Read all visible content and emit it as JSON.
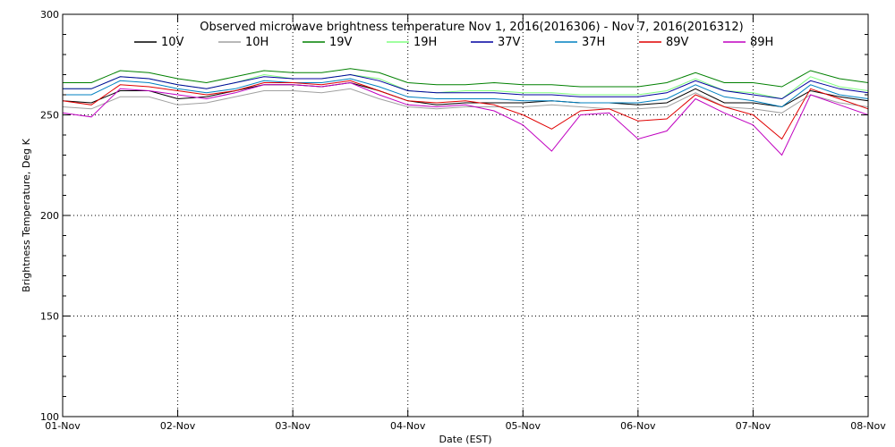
{
  "chart_data": {
    "type": "line",
    "title": "Observed microwave brightness temperature Nov  1, 2016(2016306) - Nov  7, 2016(2016312)",
    "xlabel": "Date (EST)",
    "ylabel": "Brightness Temperature, Deg K",
    "xlim": [
      "01-Nov",
      "08-Nov"
    ],
    "ylim": [
      100,
      300
    ],
    "x_ticks": [
      "01-Nov",
      "02-Nov",
      "03-Nov",
      "04-Nov",
      "05-Nov",
      "06-Nov",
      "07-Nov",
      "08-Nov"
    ],
    "y_ticks": [
      100,
      150,
      200,
      250,
      300
    ],
    "grid": true,
    "legend_position": "top",
    "x": [
      "01-Nov 00:00",
      "01-Nov 06:00",
      "01-Nov 12:00",
      "01-Nov 18:00",
      "02-Nov 00:00",
      "02-Nov 06:00",
      "02-Nov 12:00",
      "02-Nov 18:00",
      "03-Nov 00:00",
      "03-Nov 06:00",
      "03-Nov 12:00",
      "03-Nov 18:00",
      "04-Nov 00:00",
      "04-Nov 06:00",
      "04-Nov 12:00",
      "04-Nov 18:00",
      "05-Nov 00:00",
      "05-Nov 06:00",
      "05-Nov 12:00",
      "05-Nov 18:00",
      "06-Nov 00:00",
      "06-Nov 06:00",
      "06-Nov 12:00",
      "06-Nov 18:00",
      "07-Nov 00:00",
      "07-Nov 06:00",
      "07-Nov 12:00",
      "07-Nov 18:00",
      "08-Nov 00:00"
    ],
    "series": [
      {
        "name": "10V",
        "color": "#000000",
        "values": [
          257,
          256,
          262,
          262,
          258,
          259,
          262,
          265,
          265,
          264,
          266,
          262,
          257,
          255,
          256,
          256,
          256,
          257,
          256,
          256,
          255,
          256,
          263,
          256,
          256,
          254,
          262,
          259,
          257
        ]
      },
      {
        "name": "10H",
        "color": "#a0a0a0",
        "values": [
          254,
          253,
          259,
          259,
          255,
          256,
          259,
          262,
          262,
          261,
          263,
          258,
          254,
          253,
          254,
          254,
          254,
          255,
          254,
          253,
          253,
          254,
          261,
          254,
          253,
          251,
          260,
          256,
          254
        ]
      },
      {
        "name": "19V",
        "color": "#008000",
        "values": [
          266,
          266,
          272,
          271,
          268,
          266,
          269,
          272,
          271,
          271,
          273,
          271,
          266,
          265,
          265,
          266,
          265,
          265,
          264,
          264,
          264,
          266,
          271,
          266,
          266,
          264,
          272,
          268,
          266
        ]
      },
      {
        "name": "19H",
        "color": "#80ff80",
        "values": [
          263,
          263,
          269,
          268,
          265,
          263,
          266,
          270,
          268,
          268,
          270,
          268,
          262,
          261,
          262,
          262,
          261,
          261,
          260,
          260,
          260,
          262,
          268,
          262,
          261,
          258,
          269,
          264,
          262
        ]
      },
      {
        "name": "37V",
        "color": "#0000a0",
        "values": [
          263,
          263,
          269,
          268,
          265,
          263,
          266,
          269,
          268,
          268,
          270,
          267,
          262,
          261,
          261,
          261,
          260,
          260,
          259,
          259,
          259,
          261,
          267,
          262,
          260,
          258,
          267,
          263,
          261
        ]
      },
      {
        "name": "37H",
        "color": "#0080c0",
        "values": [
          260,
          260,
          267,
          266,
          263,
          261,
          263,
          267,
          266,
          266,
          268,
          264,
          259,
          258,
          258,
          258,
          257,
          257,
          256,
          256,
          256,
          258,
          265,
          259,
          257,
          254,
          265,
          260,
          258
        ]
      },
      {
        "name": "89V",
        "color": "#e00000",
        "values": [
          257,
          255,
          265,
          264,
          262,
          260,
          262,
          266,
          266,
          265,
          267,
          262,
          257,
          256,
          257,
          255,
          250,
          243,
          252,
          253,
          247,
          248,
          260,
          254,
          250,
          238,
          263,
          258,
          253
        ]
      },
      {
        "name": "89H",
        "color": "#c000c0",
        "values": [
          251,
          249,
          263,
          262,
          260,
          258,
          261,
          265,
          265,
          264,
          266,
          260,
          255,
          254,
          255,
          252,
          245,
          232,
          250,
          251,
          238,
          242,
          258,
          251,
          245,
          230,
          260,
          255,
          250
        ]
      }
    ]
  }
}
